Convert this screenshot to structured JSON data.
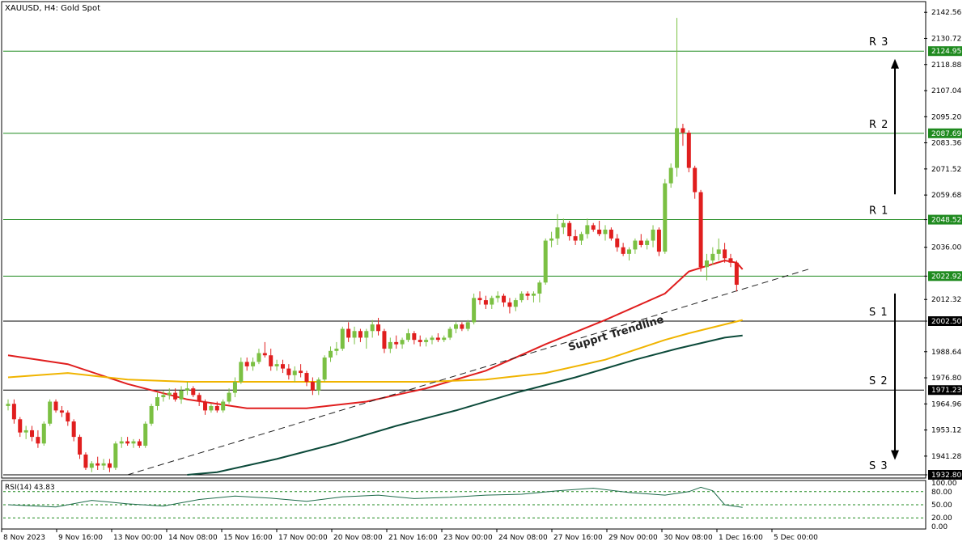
{
  "header": {
    "title": "XAUUSD, H4:  Gold Spot"
  },
  "colors": {
    "bull": "#7bc043",
    "bear": "#e01e1e",
    "ma_fast": "#e01e1e",
    "ma_mid": "#f0b400",
    "ma_slow": "#0c4a3a",
    "level_green": "#1f8a1f",
    "level_black": "#000000",
    "trendline": "#222222",
    "rsi": "#1e6b4a"
  },
  "chart_data": {
    "type": "candlestick",
    "symbol": "XAUUSD",
    "timeframe": "H4",
    "instrument": "Gold Spot",
    "ylim": [
      1932.8,
      2143.0
    ],
    "price_ticks": [
      "2142.56",
      "2130.72",
      "2118.88",
      "2107.04",
      "2095.20",
      "2083.36",
      "2071.52",
      "2059.68",
      "2048.52",
      "2036.00",
      "2022.92",
      "2012.32",
      "2002.50",
      "1988.64",
      "1976.80",
      "1964.96",
      "1953.12",
      "1941.28",
      "1932.80"
    ],
    "x_labels": [
      "8 Nov 2023",
      "9 Nov 16:00",
      "13 Nov 00:00",
      "14 Nov 08:00",
      "15 Nov 16:00",
      "17 Nov 00:00",
      "20 Nov 08:00",
      "21 Nov 16:00",
      "23 Nov 00:00",
      "24 Nov 08:00",
      "27 Nov 16:00",
      "29 Nov 00:00",
      "30 Nov 08:00",
      "1 Dec 16:00",
      "5 Dec 00:00"
    ],
    "candles": [
      [
        1964,
        1967,
        1962,
        1965
      ],
      [
        1965,
        1967,
        1956,
        1958
      ],
      [
        1958,
        1959,
        1950,
        1952
      ],
      [
        1952,
        1955,
        1949,
        1953
      ],
      [
        1953,
        1955,
        1948,
        1950
      ],
      [
        1950,
        1953,
        1945,
        1947
      ],
      [
        1947,
        1957,
        1946,
        1956
      ],
      [
        1956,
        1967,
        1955,
        1966
      ],
      [
        1966,
        1967,
        1961,
        1962
      ],
      [
        1962,
        1964,
        1959,
        1961
      ],
      [
        1961,
        1962,
        1955,
        1957
      ],
      [
        1957,
        1958,
        1948,
        1950
      ],
      [
        1950,
        1951,
        1940,
        1942
      ],
      [
        1942,
        1943,
        1935,
        1936
      ],
      [
        1936,
        1939,
        1934,
        1938
      ],
      [
        1938,
        1941,
        1935,
        1937
      ],
      [
        1937,
        1940,
        1935,
        1938
      ],
      [
        1938,
        1940,
        1934,
        1936
      ],
      [
        1936,
        1948,
        1935,
        1947
      ],
      [
        1947,
        1950,
        1945,
        1948
      ],
      [
        1948,
        1950,
        1946,
        1947
      ],
      [
        1947,
        1949,
        1945,
        1948
      ],
      [
        1948,
        1949,
        1945,
        1946
      ],
      [
        1946,
        1957,
        1945,
        1956
      ],
      [
        1956,
        1965,
        1955,
        1964
      ],
      [
        1964,
        1970,
        1962,
        1968
      ],
      [
        1968,
        1971,
        1966,
        1969
      ],
      [
        1969,
        1972,
        1967,
        1970
      ],
      [
        1970,
        1972,
        1966,
        1967
      ],
      [
        1967,
        1973,
        1965,
        1971
      ],
      [
        1971,
        1975,
        1969,
        1972
      ],
      [
        1972,
        1973,
        1968,
        1969
      ],
      [
        1969,
        1970,
        1964,
        1966
      ],
      [
        1966,
        1967,
        1960,
        1962
      ],
      [
        1962,
        1965,
        1961,
        1964
      ],
      [
        1964,
        1966,
        1961,
        1962
      ],
      [
        1962,
        1967,
        1961,
        1966
      ],
      [
        1966,
        1972,
        1965,
        1970
      ],
      [
        1970,
        1977,
        1968,
        1975
      ],
      [
        1975,
        1986,
        1974,
        1984
      ],
      [
        1984,
        1986,
        1980,
        1982
      ],
      [
        1982,
        1986,
        1980,
        1984
      ],
      [
        1984,
        1990,
        1983,
        1988
      ],
      [
        1988,
        1993,
        1986,
        1987
      ],
      [
        1987,
        1990,
        1980,
        1982
      ],
      [
        1982,
        1985,
        1980,
        1983
      ],
      [
        1983,
        1985,
        1979,
        1981
      ],
      [
        1981,
        1983,
        1976,
        1978
      ],
      [
        1978,
        1982,
        1975,
        1980
      ],
      [
        1980,
        1983,
        1977,
        1979
      ],
      [
        1979,
        1980,
        1973,
        1975
      ],
      [
        1975,
        1977,
        1969,
        1971
      ],
      [
        1971,
        1977,
        1969,
        1976
      ],
      [
        1976,
        1987,
        1975,
        1986
      ],
      [
        1986,
        1991,
        1984,
        1989
      ],
      [
        1989,
        1993,
        1987,
        1990
      ],
      [
        1990,
        2000,
        1989,
        1999
      ],
      [
        1999,
        2002,
        1993,
        1995
      ],
      [
        1995,
        2000,
        1992,
        1998
      ],
      [
        1998,
        1999,
        1993,
        1995
      ],
      [
        1995,
        1999,
        1990,
        1998
      ],
      [
        1998,
        2003,
        1995,
        2001
      ],
      [
        2001,
        2004,
        1996,
        1998
      ],
      [
        1998,
        1999,
        1988,
        1990
      ],
      [
        1990,
        1995,
        1988,
        1993
      ],
      [
        1993,
        1996,
        1990,
        1992
      ],
      [
        1992,
        1995,
        1990,
        1994
      ],
      [
        1994,
        1999,
        1993,
        1997
      ],
      [
        1997,
        1998,
        1992,
        1994
      ],
      [
        1994,
        1996,
        1991,
        1993
      ],
      [
        1993,
        1995,
        1991,
        1994
      ],
      [
        1994,
        1996,
        1992,
        1995
      ],
      [
        1995,
        1997,
        1993,
        1994
      ],
      [
        1994,
        1996,
        1993,
        1995
      ],
      [
        1995,
        2000,
        1994,
        1999
      ],
      [
        1999,
        2002,
        1997,
        2001
      ],
      [
        2001,
        2002,
        1998,
        1999
      ],
      [
        1999,
        2003,
        1998,
        2002
      ],
      [
        2002,
        2015,
        2001,
        2013
      ],
      [
        2013,
        2016,
        2010,
        2012
      ],
      [
        2012,
        2014,
        2008,
        2010
      ],
      [
        2010,
        2014,
        2008,
        2013
      ],
      [
        2013,
        2016,
        2011,
        2014
      ],
      [
        2014,
        2015,
        2009,
        2011
      ],
      [
        2011,
        2013,
        2006,
        2009
      ],
      [
        2009,
        2013,
        2007,
        2012
      ],
      [
        2012,
        2016,
        2011,
        2015
      ],
      [
        2015,
        2016,
        2012,
        2014
      ],
      [
        2014,
        2016,
        2011,
        2015
      ],
      [
        2015,
        2021,
        2011,
        2020
      ],
      [
        2020,
        2040,
        2019,
        2039
      ],
      [
        2039,
        2043,
        2036,
        2040
      ],
      [
        2040,
        2051,
        2037,
        2045
      ],
      [
        2045,
        2049,
        2042,
        2047
      ],
      [
        2047,
        2048,
        2039,
        2041
      ],
      [
        2041,
        2044,
        2037,
        2039
      ],
      [
        2039,
        2043,
        2037,
        2042
      ],
      [
        2042,
        2049,
        2040,
        2046
      ],
      [
        2046,
        2047,
        2043,
        2044
      ],
      [
        2044,
        2048,
        2041,
        2042
      ],
      [
        2042,
        2046,
        2039,
        2044
      ],
      [
        2044,
        2045,
        2039,
        2040
      ],
      [
        2040,
        2042,
        2034,
        2036
      ],
      [
        2036,
        2038,
        2032,
        2033
      ],
      [
        2033,
        2036,
        2030,
        2035
      ],
      [
        2035,
        2040,
        2033,
        2039
      ],
      [
        2039,
        2042,
        2036,
        2037
      ],
      [
        2037,
        2040,
        2035,
        2039
      ],
      [
        2039,
        2046,
        2036,
        2044
      ],
      [
        2044,
        2045,
        2032,
        2034
      ],
      [
        2034,
        2067,
        2033,
        2065
      ],
      [
        2065,
        2074,
        2063,
        2072
      ],
      [
        2072,
        2140,
        2068,
        2090
      ],
      [
        2090,
        2092,
        2082,
        2088
      ],
      [
        2088,
        2089,
        2070,
        2072
      ],
      [
        2072,
        2073,
        2058,
        2061
      ],
      [
        2061,
        2062,
        2025,
        2027
      ],
      [
        2027,
        2033,
        2021,
        2030
      ],
      [
        2030,
        2036,
        2028,
        2033
      ],
      [
        2033,
        2040,
        2030,
        2035
      ],
      [
        2035,
        2038,
        2029,
        2031
      ],
      [
        2031,
        2033,
        2027,
        2029
      ],
      [
        2029,
        2030,
        2016,
        2019
      ]
    ],
    "moving_averages": [
      {
        "color_key": "ma_fast",
        "points": [
          [
            0,
            1987
          ],
          [
            10,
            1983
          ],
          [
            20,
            1974
          ],
          [
            30,
            1967
          ],
          [
            40,
            1963
          ],
          [
            50,
            1963
          ],
          [
            60,
            1966
          ],
          [
            70,
            1972
          ],
          [
            80,
            1980
          ],
          [
            90,
            1992
          ],
          [
            100,
            2003
          ],
          [
            110,
            2015
          ],
          [
            114,
            2025
          ],
          [
            120,
            2030
          ],
          [
            122,
            2029
          ],
          [
            123,
            2026
          ]
        ]
      },
      {
        "color_key": "ma_mid",
        "points": [
          [
            0,
            1977
          ],
          [
            10,
            1979
          ],
          [
            20,
            1976
          ],
          [
            30,
            1975
          ],
          [
            40,
            1975
          ],
          [
            50,
            1975
          ],
          [
            60,
            1975
          ],
          [
            70,
            1975
          ],
          [
            80,
            1976
          ],
          [
            90,
            1979
          ],
          [
            100,
            1985
          ],
          [
            110,
            1994
          ],
          [
            114,
            1997
          ],
          [
            123,
            2003
          ]
        ]
      },
      {
        "color_key": "ma_slow",
        "points": [
          [
            30,
            1932.8
          ],
          [
            35,
            1934
          ],
          [
            45,
            1940
          ],
          [
            55,
            1947
          ],
          [
            65,
            1955
          ],
          [
            75,
            1962
          ],
          [
            85,
            1970
          ],
          [
            95,
            1977
          ],
          [
            105,
            1985
          ],
          [
            112,
            1990
          ],
          [
            120,
            1995
          ],
          [
            123,
            1996
          ]
        ]
      }
    ],
    "levels": [
      {
        "label": "R 3",
        "value": "2124.95",
        "price": 2124.95,
        "color_key": "level_green"
      },
      {
        "label": "R 2",
        "value": "2087.69",
        "price": 2087.69,
        "color_key": "level_green"
      },
      {
        "label": "R 1",
        "value": "2048.52",
        "price": 2048.52,
        "color_key": "level_green"
      },
      {
        "label": "",
        "value": "2022.92",
        "price": 2022.92,
        "color_key": "level_green"
      },
      {
        "label": "S 1",
        "value": "2002.50",
        "price": 2002.5,
        "color_key": "level_black"
      },
      {
        "label": "S 2",
        "value": "1971.23",
        "price": 1971.23,
        "color_key": "level_black"
      },
      {
        "label": "S 3",
        "value": "1932.80",
        "price": 1932.8,
        "color_key": "level_black"
      }
    ],
    "trendline": {
      "label": "Supprt Trendline",
      "from": [
        20,
        1932.8
      ],
      "to": [
        134,
        2026
      ]
    },
    "arrows": [
      {
        "direction": "up",
        "from_price": 2060,
        "to_price": 2120
      },
      {
        "direction": "down",
        "from_price": 2015,
        "to_price": 1941
      }
    ],
    "rsi": {
      "label": "RSI(14) 43.83",
      "ticks": [
        "100.00",
        "80.00",
        "50.00",
        "20.00",
        "0.00"
      ],
      "levels": [
        80,
        50,
        20
      ],
      "points": [
        [
          0,
          50
        ],
        [
          8,
          45
        ],
        [
          14,
          60
        ],
        [
          20,
          52
        ],
        [
          26,
          47
        ],
        [
          32,
          62
        ],
        [
          38,
          70
        ],
        [
          44,
          65
        ],
        [
          50,
          58
        ],
        [
          56,
          68
        ],
        [
          62,
          72
        ],
        [
          68,
          64
        ],
        [
          74,
          67
        ],
        [
          80,
          72
        ],
        [
          86,
          74
        ],
        [
          92,
          82
        ],
        [
          98,
          88
        ],
        [
          104,
          78
        ],
        [
          110,
          72
        ],
        [
          114,
          80
        ],
        [
          116,
          90
        ],
        [
          118,
          82
        ],
        [
          120,
          50
        ],
        [
          123,
          43.83
        ]
      ]
    }
  }
}
